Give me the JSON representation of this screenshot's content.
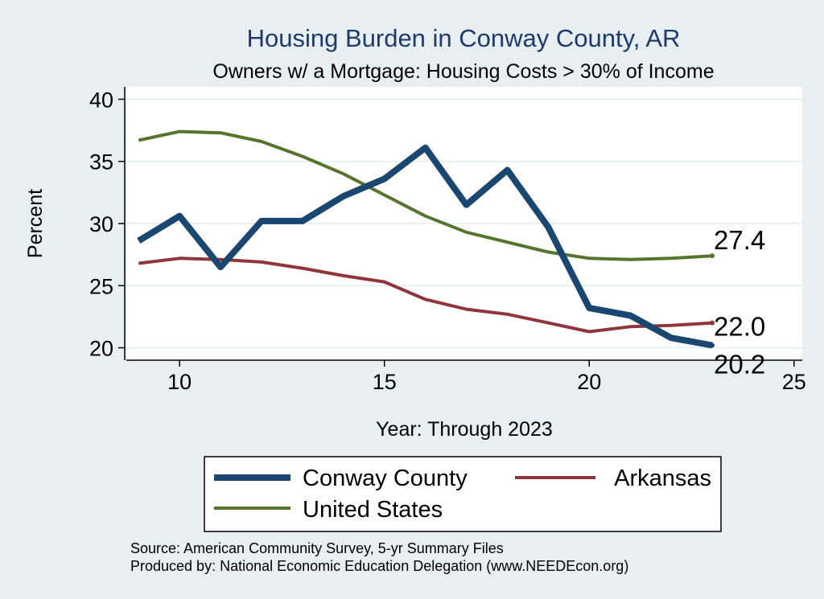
{
  "colors": {
    "background": "#e8eff2",
    "plot_bg": "#ffffff",
    "conway": "#1a476f",
    "arkansas": "#90353b",
    "us": "#55752f",
    "title": "#1f3a6b"
  },
  "chart_data": {
    "type": "line",
    "title": "Housing Burden in Conway County, AR",
    "subtitle": "Owners w/ a Mortgage: Housing Costs > 30% of Income",
    "xlabel": "Year: Through 2023",
    "ylabel": "Percent",
    "xlim": [
      8.7,
      25.2
    ],
    "ylim": [
      19.0,
      41.0
    ],
    "xticks": [
      10,
      15,
      20,
      25
    ],
    "yticks": [
      20,
      25,
      30,
      35,
      40
    ],
    "grid": true,
    "legend_position": "bottom",
    "series": [
      {
        "name": "Conway County",
        "color": "#1a476f",
        "x": [
          9,
          10,
          11,
          12,
          13,
          14,
          15,
          16,
          17,
          18,
          19,
          20,
          21,
          22,
          23
        ],
        "values": [
          28.6,
          30.6,
          26.5,
          30.2,
          30.2,
          32.2,
          33.6,
          36.1,
          31.5,
          34.3,
          29.7,
          23.2,
          22.6,
          20.8,
          20.2
        ],
        "end_label": "20.2"
      },
      {
        "name": "Arkansas",
        "color": "#90353b",
        "x": [
          9,
          10,
          11,
          12,
          13,
          14,
          15,
          16,
          17,
          18,
          19,
          20,
          21,
          22,
          23
        ],
        "values": [
          26.8,
          27.2,
          27.1,
          26.9,
          26.4,
          25.8,
          25.3,
          23.9,
          23.1,
          22.7,
          22.0,
          21.3,
          21.7,
          21.8,
          22.0
        ],
        "end_label": "22.0"
      },
      {
        "name": "United States",
        "color": "#55752f",
        "x": [
          9,
          10,
          11,
          12,
          13,
          14,
          15,
          16,
          17,
          18,
          19,
          20,
          21,
          22,
          23
        ],
        "values": [
          36.7,
          37.4,
          37.3,
          36.6,
          35.4,
          34.0,
          32.3,
          30.6,
          29.3,
          28.5,
          27.7,
          27.2,
          27.1,
          27.2,
          27.4
        ],
        "end_label": "27.4"
      }
    ]
  },
  "source": {
    "line1": "Source: American Community Survey, 5-yr Summary Files",
    "line2": "Produced by: National Economic Education Delegation (www.NEEDEcon.org)"
  }
}
